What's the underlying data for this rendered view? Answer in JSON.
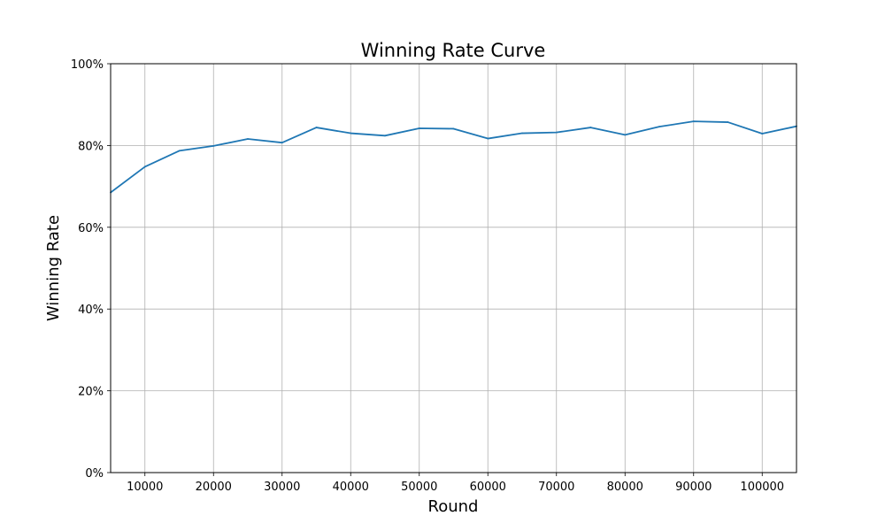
{
  "chart_data": {
    "type": "line",
    "title": "Winning Rate Curve",
    "xlabel": "Round",
    "ylabel": "Winning Rate",
    "xlim": [
      5000,
      105000
    ],
    "ylim": [
      0,
      1
    ],
    "x_ticks": [
      10000,
      20000,
      30000,
      40000,
      50000,
      60000,
      70000,
      80000,
      90000,
      100000
    ],
    "x_tick_labels": [
      "10000",
      "20000",
      "30000",
      "40000",
      "50000",
      "60000",
      "70000",
      "80000",
      "90000",
      "100000"
    ],
    "y_ticks": [
      0,
      0.2,
      0.4,
      0.6,
      0.8,
      1.0
    ],
    "y_tick_labels": [
      "0%",
      "20%",
      "40%",
      "60%",
      "80%",
      "100%"
    ],
    "grid": true,
    "series": [
      {
        "color": "#1f77b4",
        "x": [
          5000,
          10000,
          15000,
          20000,
          25000,
          30000,
          35000,
          40000,
          45000,
          50000,
          55000,
          60000,
          65000,
          70000,
          75000,
          80000,
          85000,
          90000,
          95000,
          100000,
          105000
        ],
        "y": [
          0.685,
          0.748,
          0.787,
          0.799,
          0.816,
          0.807,
          0.844,
          0.83,
          0.824,
          0.842,
          0.841,
          0.817,
          0.83,
          0.832,
          0.844,
          0.826,
          0.846,
          0.859,
          0.857,
          0.829,
          0.847
        ]
      }
    ]
  }
}
